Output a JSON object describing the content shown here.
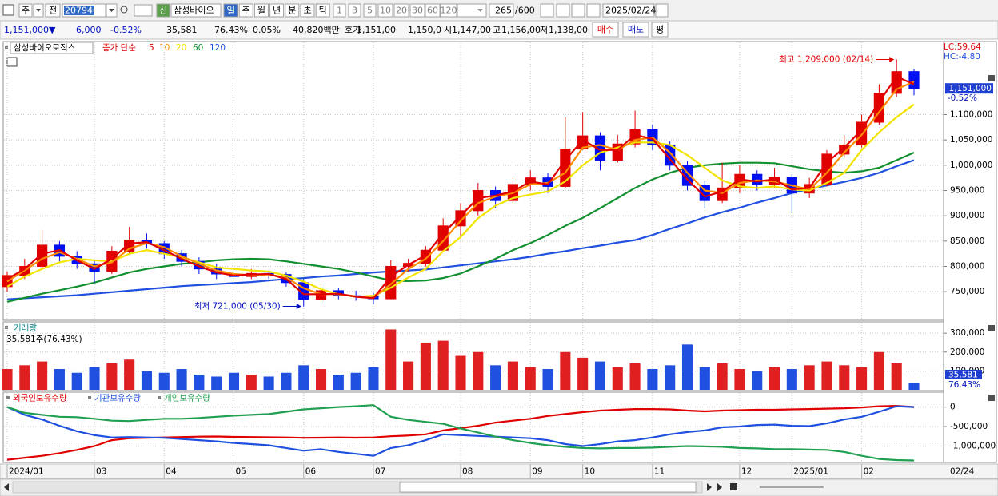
{
  "toolbar": {
    "period": "주",
    "prev": "전",
    "code": "207940",
    "new": "신",
    "name": "삼성바이오",
    "intervals": [
      "일",
      "주",
      "월",
      "년",
      "분",
      "초",
      "틱"
    ],
    "multipliers": [
      "1",
      "3",
      "5",
      "10",
      "20",
      "30",
      "60",
      "120"
    ],
    "count": "265",
    "max": "/600",
    "date": "2025/02/24"
  },
  "quote_bar": {
    "price": "1,151,000▼",
    "change": "6,000",
    "change_pct": "-0.52%",
    "volume": "35,581",
    "volume_ratio": "76.43%",
    "turnover": "0.05%",
    "amount": "40,820백만",
    "ask_label": "호가",
    "ask": "1,151,00",
    "bid": "1,150,0",
    "open_label": "시",
    "open": "1,147,00",
    "high_label": "고",
    "high": "1,156,00",
    "low_label": "저",
    "low": "1,138,00",
    "buy": "매수",
    "sell": "매도",
    "avg": "평"
  },
  "chart_data": [
    {
      "type": "candlestick",
      "title": "삼성바이오로직스",
      "ma_label": "종가 단순",
      "open": [
        760000,
        782000,
        800000,
        842000,
        820000,
        805000,
        790000,
        830000,
        852000,
        845000,
        825000,
        810000,
        795000,
        785000,
        780000,
        786000,
        784000,
        768000,
        735000,
        752000,
        742000,
        740000,
        736000,
        800000,
        806000,
        832000,
        880000,
        910000,
        950000,
        930000,
        962000,
        975000,
        958000,
        1032000,
        1058000,
        1010000,
        1042000,
        1070000,
        1040000,
        1000000,
        960000,
        930000,
        955000,
        982000,
        962000,
        976000,
        945000,
        962000,
        1022000,
        1040000,
        1085000,
        1142000,
        1185000
      ],
      "high": [
        790000,
        815000,
        872000,
        850000,
        830000,
        812000,
        840000,
        878000,
        865000,
        850000,
        832000,
        818000,
        805000,
        795000,
        795000,
        792000,
        788000,
        775000,
        765000,
        758000,
        752000,
        748000,
        812000,
        815000,
        840000,
        895000,
        925000,
        965000,
        958000,
        975000,
        990000,
        985000,
        1095000,
        1105000,
        1065000,
        1060000,
        1108000,
        1080000,
        1048000,
        1008000,
        968000,
        1005000,
        1000000,
        990000,
        995000,
        982000,
        975000,
        1030000,
        1060000,
        1100000,
        1160000,
        1209000,
        1190000
      ],
      "low": [
        750000,
        775000,
        795000,
        810000,
        795000,
        768000,
        785000,
        825000,
        835000,
        815000,
        800000,
        785000,
        775000,
        772000,
        775000,
        775000,
        760000,
        721000,
        730000,
        735000,
        732000,
        725000,
        735000,
        790000,
        800000,
        828000,
        860000,
        900000,
        915000,
        925000,
        950000,
        945000,
        955000,
        1030000,
        990000,
        1005000,
        1035000,
        1030000,
        990000,
        950000,
        915000,
        925000,
        945000,
        950000,
        955000,
        905000,
        935000,
        958000,
        1015000,
        1035000,
        1080000,
        1135000,
        1138000
      ],
      "close": [
        782000,
        800000,
        842000,
        820000,
        805000,
        790000,
        830000,
        852000,
        845000,
        825000,
        810000,
        795000,
        785000,
        780000,
        786000,
        784000,
        768000,
        735000,
        752000,
        742000,
        740000,
        736000,
        800000,
        806000,
        832000,
        880000,
        910000,
        950000,
        930000,
        962000,
        975000,
        958000,
        1032000,
        1058000,
        1010000,
        1042000,
        1070000,
        1040000,
        1000000,
        960000,
        930000,
        955000,
        982000,
        962000,
        976000,
        945000,
        962000,
        1022000,
        1040000,
        1085000,
        1142000,
        1185000,
        1151000
      ],
      "up_color": "#e00000",
      "down_color": "#0010f0",
      "series": [
        {
          "name": "5",
          "color": "#e00000",
          "values": [
            775000,
            795000,
            825000,
            832000,
            812000,
            795000,
            815000,
            845000,
            848000,
            832000,
            815000,
            800000,
            788000,
            782000,
            784000,
            785000,
            775000,
            745000,
            745000,
            746000,
            740000,
            737000,
            780000,
            803000,
            822000,
            865000,
            900000,
            935000,
            940000,
            948000,
            968000,
            962000,
            1010000,
            1050000,
            1030000,
            1030000,
            1060000,
            1052000,
            1012000,
            972000,
            938000,
            948000,
            972000,
            968000,
            972000,
            952000,
            955000,
            1005000,
            1035000,
            1070000,
            1125000,
            1175000,
            1160000
          ]
        },
        {
          "name": "10",
          "color": "#ff8c00",
          "values": [
            770000,
            792000,
            815000,
            828000,
            815000,
            800000,
            808000,
            835000,
            846000,
            838000,
            820000,
            805000,
            792000,
            785000,
            783000,
            784000,
            778000,
            757000,
            745000,
            745000,
            741000,
            738000,
            765000,
            795000,
            815000,
            850000,
            890000,
            925000,
            938000,
            945000,
            962000,
            965000,
            985000,
            1035000,
            1040000,
            1030000,
            1050000,
            1055000,
            1025000,
            985000,
            950000,
            945000,
            965000,
            970000,
            968000,
            960000,
            952000,
            985000,
            1025000,
            1060000,
            1105000,
            1150000,
            1165000
          ]
        },
        {
          "name": "20",
          "color": "#f2e400",
          "values": [
            760000,
            780000,
            795000,
            808000,
            815000,
            812000,
            810000,
            825000,
            832000,
            825000,
            818000,
            808000,
            798000,
            795000,
            792000,
            790000,
            782000,
            770000,
            755000,
            745000,
            740000,
            742000,
            758000,
            778000,
            795000,
            830000,
            858000,
            895000,
            920000,
            935000,
            942000,
            948000,
            968000,
            1000000,
            1025000,
            1035000,
            1045000,
            1045000,
            1040000,
            1020000,
            995000,
            970000,
            958000,
            955000,
            958000,
            952000,
            950000,
            965000,
            985000,
            1030000,
            1065000,
            1095000,
            1120000
          ]
        },
        {
          "name": "60",
          "color": "#129030",
          "values": [
            730000,
            738000,
            746000,
            753000,
            760000,
            768000,
            778000,
            788000,
            795000,
            800000,
            805000,
            808000,
            812000,
            814000,
            815000,
            814000,
            810000,
            805000,
            800000,
            795000,
            788000,
            780000,
            772000,
            771000,
            772000,
            777000,
            786000,
            800000,
            815000,
            832000,
            846000,
            862000,
            880000,
            896000,
            915000,
            935000,
            955000,
            972000,
            985000,
            995000,
            1000000,
            1003000,
            1005000,
            1005000,
            1004000,
            998000,
            992000,
            988000,
            985000,
            988000,
            995000,
            1010000,
            1025000
          ]
        },
        {
          "name": "120",
          "color": "#2050e0",
          "values": [
            735000,
            737000,
            739000,
            741000,
            743000,
            746000,
            749000,
            752000,
            755000,
            758000,
            761000,
            763000,
            765000,
            767000,
            769000,
            772000,
            775000,
            777000,
            780000,
            782000,
            785000,
            788000,
            790000,
            792000,
            794000,
            798000,
            802000,
            806000,
            810000,
            814000,
            819000,
            825000,
            830000,
            836000,
            841000,
            847000,
            852000,
            862000,
            874000,
            885000,
            897000,
            907000,
            916000,
            926000,
            935000,
            945000,
            953000,
            960000,
            967000,
            975000,
            985000,
            998000,
            1010000
          ]
        }
      ],
      "ylim": [
        695000,
        1235000
      ],
      "yticks": [
        {
          "value": 750000,
          "label": "750,000"
        },
        {
          "value": 800000,
          "label": "800,000"
        },
        {
          "value": 850000,
          "label": "850,000"
        },
        {
          "value": 900000,
          "label": "900,000"
        },
        {
          "value": 950000,
          "label": "950,000"
        },
        {
          "value": 1000000,
          "label": "1,000,000"
        },
        {
          "value": 1050000,
          "label": "1,050,000"
        },
        {
          "value": 1100000,
          "label": "1,100,000"
        }
      ],
      "grid": true,
      "annotations": [
        {
          "text": "최고 1,209,000 (02/14)",
          "index": 51,
          "value": 1209000,
          "color": "#e00000"
        },
        {
          "text": "최저 721,000 (05/30)",
          "index": 17,
          "value": 721000,
          "color": "#0010c0"
        }
      ],
      "lc_label": "LC:59.64",
      "hc_label": "HC:-4.80",
      "last_value_label": "1,151,000",
      "last_change": "-0.52%"
    },
    {
      "type": "bar",
      "title": "거래량",
      "subtitle": "35,581주(76.43%)",
      "values": [
        110000,
        130000,
        150000,
        110000,
        90000,
        120000,
        140000,
        160000,
        100000,
        90000,
        110000,
        80000,
        70000,
        90000,
        80000,
        70000,
        90000,
        130000,
        110000,
        80000,
        90000,
        120000,
        320000,
        150000,
        250000,
        260000,
        180000,
        200000,
        130000,
        150000,
        120000,
        110000,
        200000,
        170000,
        150000,
        120000,
        140000,
        110000,
        130000,
        240000,
        120000,
        140000,
        110000,
        100000,
        120000,
        110000,
        130000,
        150000,
        130000,
        120000,
        200000,
        140000,
        35581
      ],
      "up_color": "#e02020",
      "down_color": "#2050e0",
      "ylim": [
        0,
        360000
      ],
      "yticks": [
        {
          "value": 100000,
          "label": "100,000"
        },
        {
          "value": 200000,
          "label": "200,000"
        },
        {
          "value": 300000,
          "label": "300,000"
        }
      ],
      "last_value_label": "35,581",
      "last_pct": "76.43%"
    },
    {
      "type": "line",
      "categories": [
        "2024/01",
        null,
        null,
        null,
        null,
        "03",
        null,
        null,
        null,
        "04",
        null,
        null,
        null,
        "05",
        null,
        null,
        null,
        "06",
        null,
        null,
        null,
        "07",
        null,
        null,
        null,
        null,
        "08",
        null,
        null,
        null,
        "09",
        null,
        null,
        "10",
        null,
        null,
        null,
        "11",
        null,
        null,
        null,
        null,
        "12",
        null,
        null,
        "2025/01",
        null,
        null,
        null,
        "02",
        null,
        null,
        null
      ],
      "last_date": "02/24",
      "series": [
        {
          "name": "외국인보유수량",
          "color": "#e00000",
          "values": [
            -1350000,
            -1300000,
            -1250000,
            -1180000,
            -1100000,
            -1000000,
            -850000,
            -800000,
            -790000,
            -780000,
            -770000,
            -760000,
            -755000,
            -765000,
            -770000,
            -775000,
            -780000,
            -790000,
            -785000,
            -780000,
            -785000,
            -780000,
            -750000,
            -730000,
            -700000,
            -600000,
            -540000,
            -480000,
            -400000,
            -350000,
            -300000,
            -230000,
            -180000,
            -130000,
            -90000,
            -70000,
            -50000,
            -50000,
            -60000,
            -90000,
            -110000,
            -90000,
            -80000,
            -70000,
            -70000,
            -60000,
            -50000,
            -40000,
            -30000,
            -10000,
            20000,
            30000,
            0
          ]
        },
        {
          "name": "기관보유수량",
          "color": "#2050e0",
          "values": [
            0,
            -200000,
            -320000,
            -480000,
            -620000,
            -720000,
            -780000,
            -770000,
            -780000,
            -790000,
            -820000,
            -850000,
            -880000,
            -920000,
            -950000,
            -980000,
            -1050000,
            -1120000,
            -1080000,
            -1150000,
            -1200000,
            -1250000,
            -1050000,
            -980000,
            -850000,
            -700000,
            -720000,
            -740000,
            -760000,
            -780000,
            -800000,
            -850000,
            -950000,
            -1000000,
            -950000,
            -880000,
            -850000,
            -780000,
            -700000,
            -640000,
            -600000,
            -520000,
            -500000,
            -460000,
            -450000,
            -480000,
            -490000,
            -420000,
            -320000,
            -250000,
            -120000,
            20000,
            0
          ]
        },
        {
          "name": "개인보유수량",
          "color": "#20a050",
          "values": [
            0,
            -150000,
            -200000,
            -250000,
            -260000,
            -300000,
            -350000,
            -360000,
            -330000,
            -300000,
            -300000,
            -280000,
            -250000,
            -220000,
            -200000,
            -180000,
            -120000,
            -60000,
            -30000,
            0,
            20000,
            50000,
            -250000,
            -330000,
            -380000,
            -430000,
            -550000,
            -650000,
            -760000,
            -850000,
            -920000,
            -980000,
            -1020000,
            -1050000,
            -1060000,
            -1050000,
            -1050000,
            -1040000,
            -1020000,
            -1000000,
            -1010000,
            -1020000,
            -1050000,
            -1060000,
            -1080000,
            -1080000,
            -1090000,
            -1100000,
            -1150000,
            -1250000,
            -1330000,
            -1360000,
            -1370000
          ]
        }
      ],
      "ylim": [
        -1400000,
        340000
      ],
      "yticks": [
        0,
        {
          "value": -500000,
          "label": "-500,000"
        },
        {
          "value": -1000000,
          "label": "-1,000,000"
        }
      ],
      "grid": true
    }
  ]
}
